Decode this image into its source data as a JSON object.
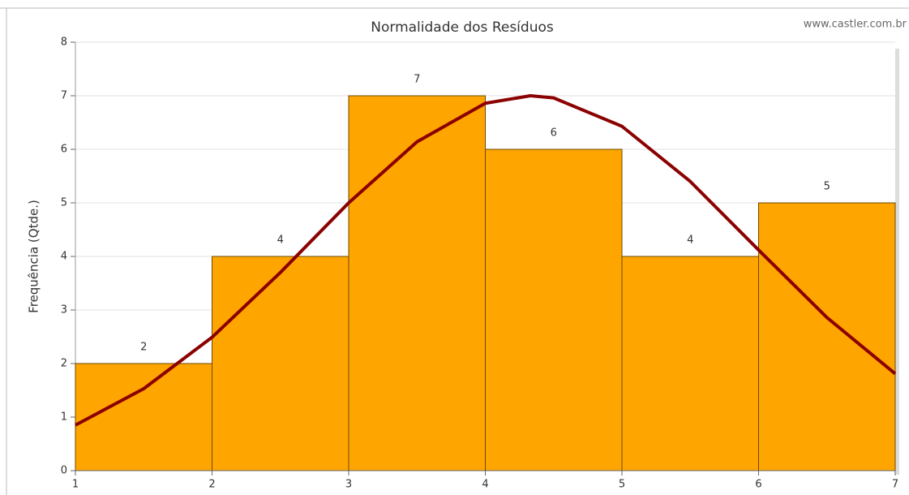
{
  "chart_data": {
    "type": "histogram",
    "title": "Normalidade dos Resíduos",
    "watermark": "www.castler.com.br",
    "y_label": "Frequência (Qtde.)",
    "bins": [
      1,
      2,
      3,
      4,
      5,
      6,
      7
    ],
    "values": [
      2,
      4,
      7,
      6,
      4,
      5
    ],
    "color": "#ffa500",
    "curve": {
      "color": "#8b0000",
      "x": [
        1,
        1.5,
        2,
        2.5,
        3,
        3.5,
        4,
        4.33,
        4.5,
        5,
        5.5,
        6,
        6.5,
        7
      ],
      "values": [
        0.85,
        1.53,
        2.49,
        3.7,
        5.0,
        6.14,
        6.86,
        7.0,
        6.96,
        6.43,
        5.4,
        4.12,
        2.86,
        1.81
      ]
    },
    "xlim": [
      1,
      7
    ],
    "xticks": [
      1,
      2,
      3,
      4,
      5,
      6,
      7
    ],
    "ylim": [
      0,
      8
    ],
    "yticks": [
      0,
      1,
      2,
      3,
      4,
      5,
      6,
      7,
      8
    ],
    "grid": true
  }
}
